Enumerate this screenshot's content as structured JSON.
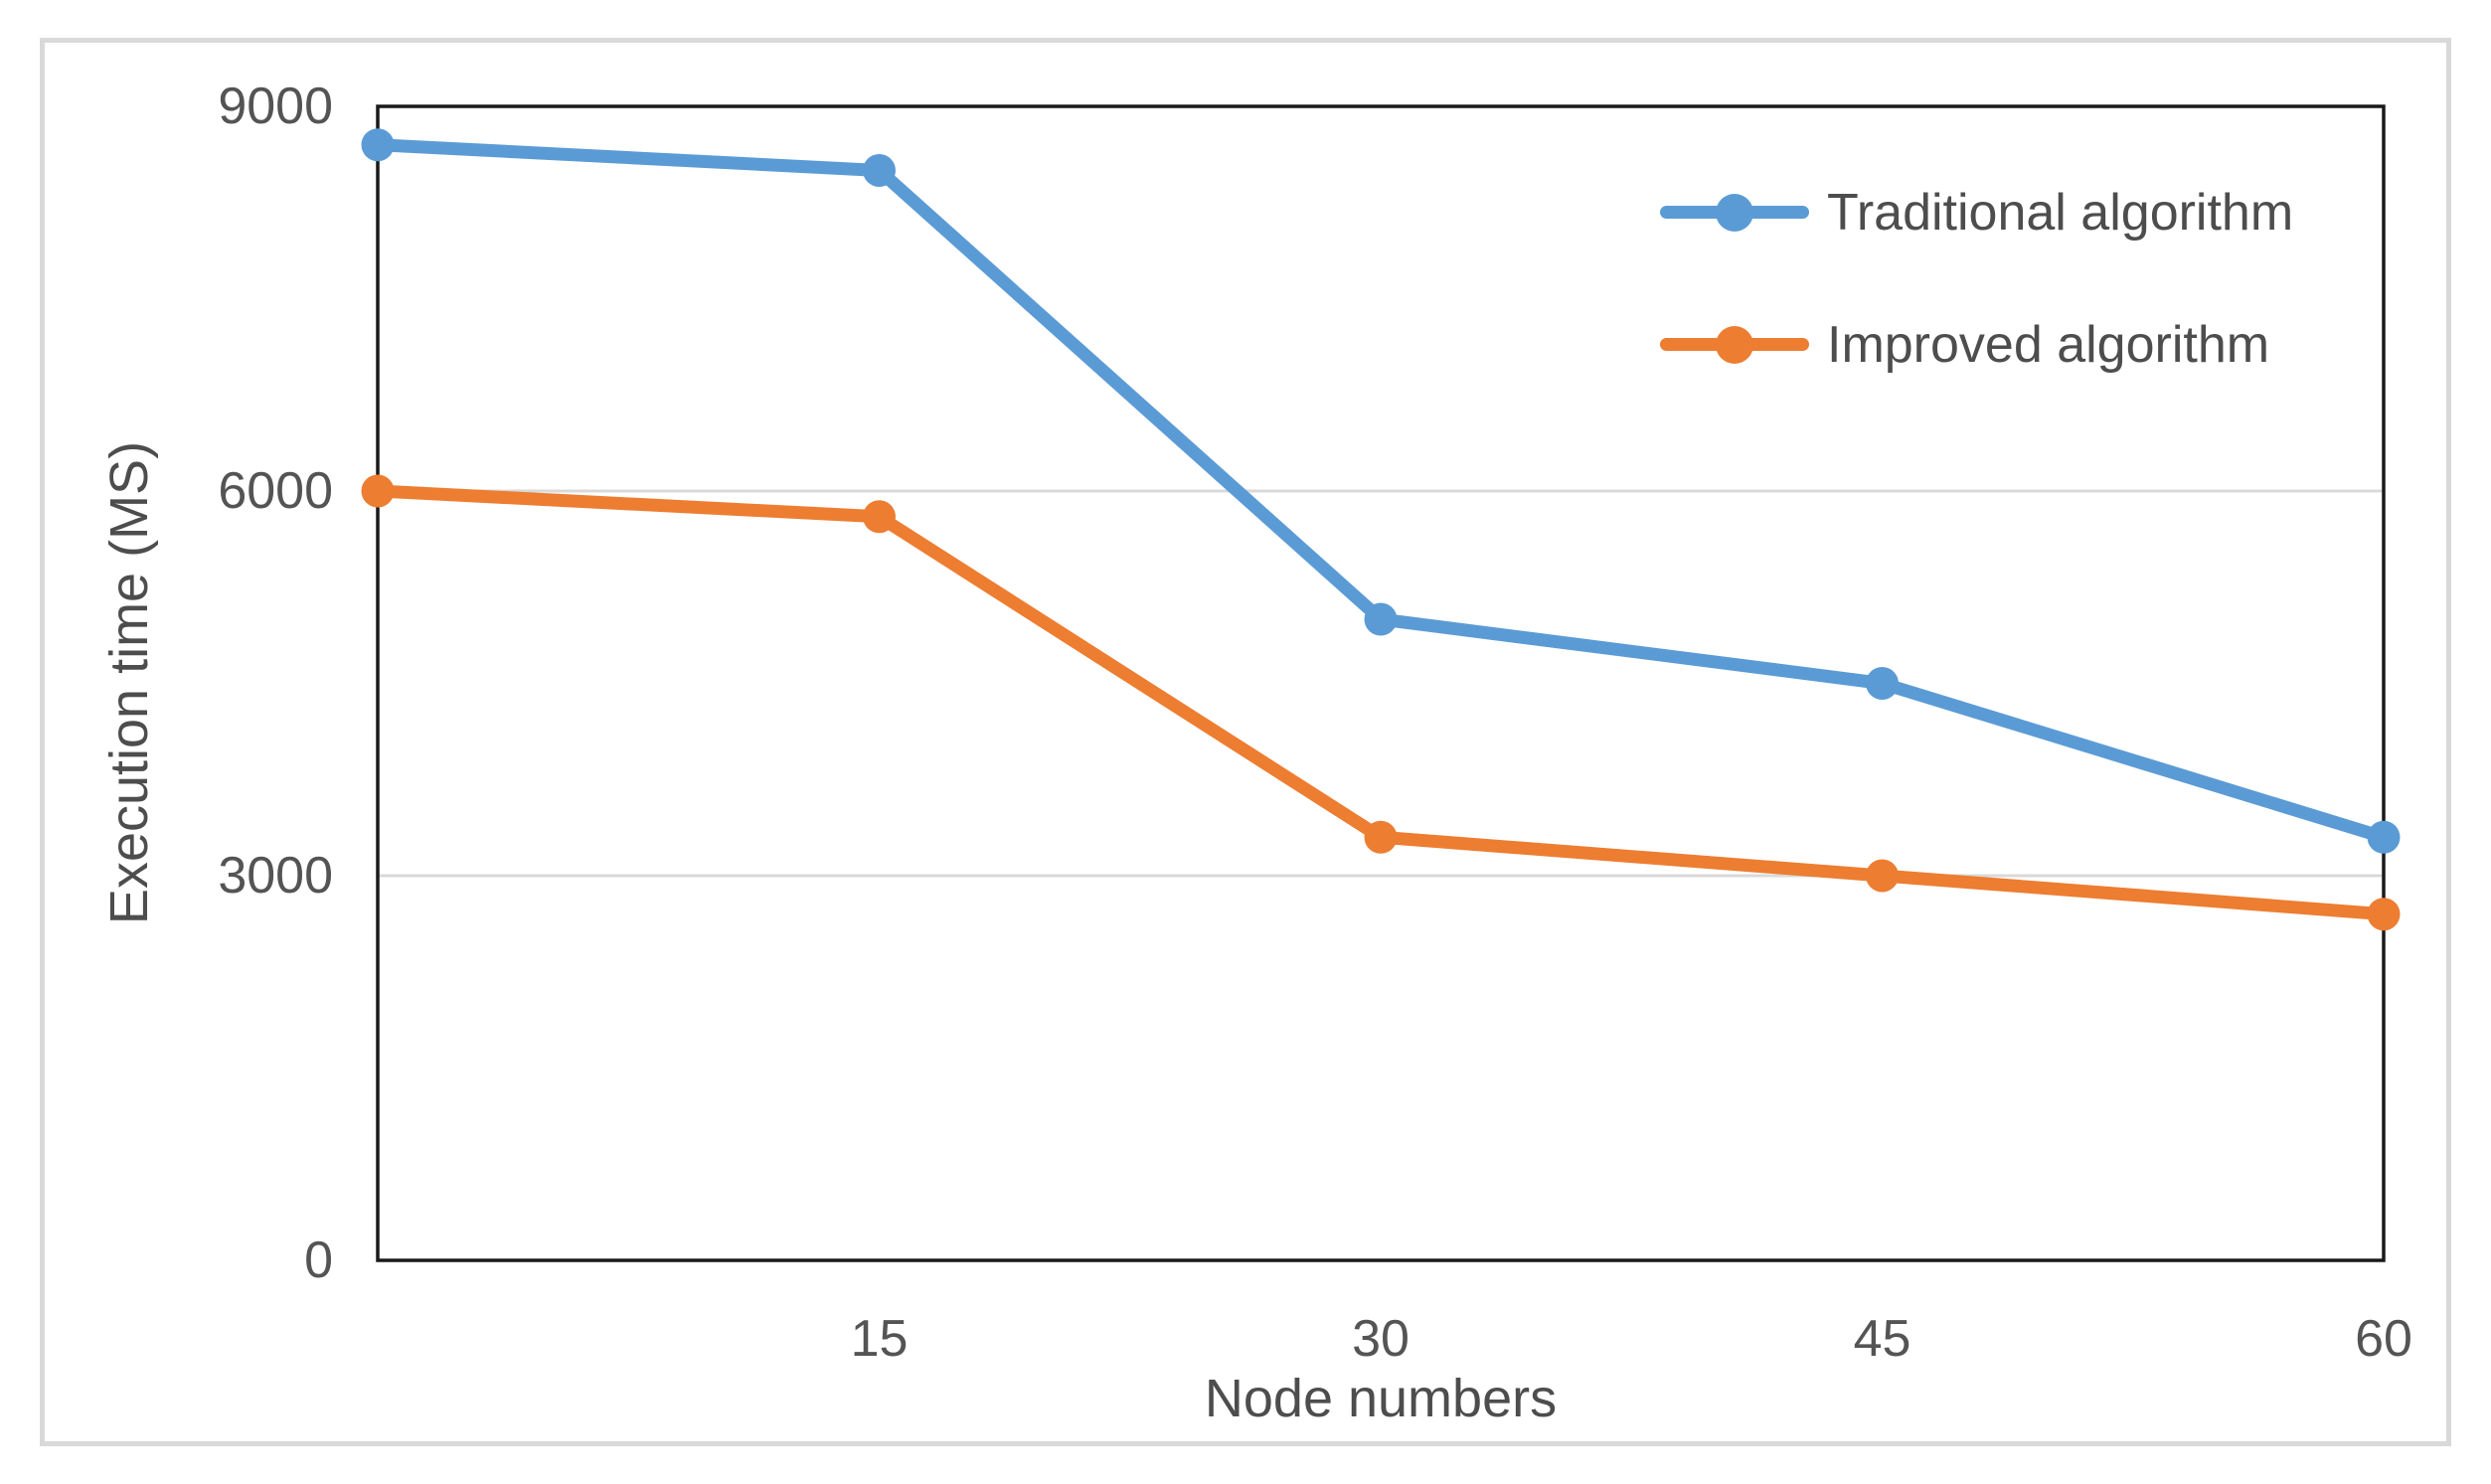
{
  "chart_data": {
    "type": "line",
    "x": [
      0,
      15,
      30,
      45,
      60
    ],
    "x_ticks": [
      15,
      30,
      45,
      60
    ],
    "x_tick_labels": [
      "15",
      "30",
      "45",
      "60"
    ],
    "y_ticks": [
      0,
      3000,
      6000,
      9000
    ],
    "y_tick_labels": [
      "0",
      "3000",
      "6000",
      "9000"
    ],
    "xlim": [
      0,
      60
    ],
    "ylim": [
      0,
      9000
    ],
    "xlabel": "Node numbers",
    "ylabel": "Execution time (MS)",
    "grid": "horizontal",
    "gridline_values": [
      3000,
      6000
    ],
    "legend_position": "top-right-inside",
    "marker": "circle",
    "series": [
      {
        "name": "Traditional algorithm",
        "color": "#5B9BD5",
        "values": [
          8700,
          8500,
          5000,
          4500,
          3300
        ]
      },
      {
        "name": "Improved algorithm",
        "color": "#ED7D31",
        "values": [
          6000,
          5800,
          3300,
          3000,
          2700
        ]
      }
    ],
    "colors": {
      "axis_line": "#1a1a1a",
      "gridline": "#d9d9d9",
      "tick_text": "#545454",
      "title_text": "#4d4d4d",
      "figure_border": "#d9d9d9",
      "background": "#ffffff"
    }
  }
}
